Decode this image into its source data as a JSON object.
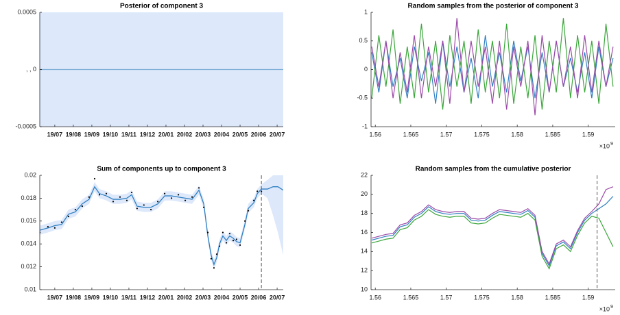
{
  "chart_data": [
    {
      "type": "line",
      "title": "Posterior of component 3",
      "xlim": [
        -0.81,
        12.33
      ],
      "xticks": [
        {
          "value": 0,
          "label": "19/07"
        },
        {
          "value": 1,
          "label": "19/08"
        },
        {
          "value": 2,
          "label": "19/09"
        },
        {
          "value": 3,
          "label": "19/10"
        },
        {
          "value": 4,
          "label": "19/11"
        },
        {
          "value": 5,
          "label": "19/12"
        },
        {
          "value": 6,
          "label": "20/01"
        },
        {
          "value": 7,
          "label": "20/02"
        },
        {
          "value": 8,
          "label": "20/03"
        },
        {
          "value": 9,
          "label": "20/04"
        },
        {
          "value": 10,
          "label": "20/05"
        },
        {
          "value": 11,
          "label": "20/06"
        },
        {
          "value": 12,
          "label": "20/07"
        }
      ],
      "ylim": [
        -0.0005,
        0.0005
      ],
      "yticks": [
        -0.0005,
        {
          "value": 0,
          "label": ", , 0"
        },
        0.0005
      ],
      "x": [
        -0.81,
        12.33
      ],
      "band": {
        "color": "#dde8fb",
        "lower": [
          -0.0005,
          -0.0005
        ],
        "upper": [
          0.0005,
          0.0005
        ]
      },
      "series": [
        {
          "color": "#7fb0d8",
          "values": [
            0,
            0
          ]
        }
      ]
    },
    {
      "type": "line",
      "title": "Random samples from the posterior of component 3",
      "xlim": [
        1.5594,
        1.5938
      ],
      "xticks": [
        1.56,
        1.565,
        1.57,
        1.575,
        1.58,
        1.585,
        1.59
      ],
      "x_multiplier": "×10",
      "x_exponent": "9",
      "ylim": [
        -1,
        1
      ],
      "yticks": [
        -1,
        -0.5,
        0,
        0.5,
        1
      ],
      "x": [
        1.5595,
        1.5605,
        1.5615,
        1.5625,
        1.5635,
        1.5645,
        1.5655,
        1.5665,
        1.5675,
        1.5685,
        1.5695,
        1.5705,
        1.5715,
        1.5725,
        1.5735,
        1.5745,
        1.5755,
        1.5765,
        1.5775,
        1.5785,
        1.5795,
        1.5805,
        1.5815,
        1.5825,
        1.5835,
        1.5845,
        1.5855,
        1.5865,
        1.5875,
        1.5885,
        1.5895,
        1.5905,
        1.5915,
        1.5925,
        1.5935
      ],
      "series": [
        {
          "color": "#2f7fc1",
          "values": [
            0.3,
            -0.4,
            0.5,
            -0.3,
            0.2,
            -0.5,
            0.4,
            -0.2,
            0.3,
            -0.6,
            0.5,
            -0.3,
            0.4,
            -0.4,
            0.2,
            -0.5,
            0.6,
            -0.3,
            0.3,
            -0.4,
            0.5,
            -0.2,
            0.4,
            -0.5,
            0.3,
            -0.4,
            0.5,
            -0.3,
            0.2,
            -0.4,
            0.3,
            -0.5,
            0.4,
            -0.3,
            0.2
          ]
        },
        {
          "color": "#3aa63a",
          "values": [
            -0.5,
            0.6,
            -0.3,
            0.7,
            -0.6,
            0.4,
            -0.5,
            0.8,
            -0.4,
            0.5,
            -0.7,
            0.6,
            -0.3,
            0.5,
            -0.6,
            0.7,
            -0.4,
            0.5,
            -0.5,
            0.8,
            -0.6,
            0.4,
            -0.5,
            0.6,
            -0.7,
            0.5,
            -0.4,
            0.9,
            -0.5,
            0.6,
            -0.4,
            0.5,
            -0.6,
            0.8,
            -0.3
          ]
        },
        {
          "color": "#9b4aa8",
          "values": [
            0.4,
            -0.3,
            0.5,
            -0.5,
            0.3,
            -0.4,
            0.6,
            -0.5,
            0.4,
            -0.3,
            0.5,
            -0.6,
            0.9,
            -0.4,
            0.5,
            -0.3,
            0.4,
            -0.6,
            0.5,
            -0.7,
            0.4,
            -0.3,
            0.5,
            -0.8,
            0.6,
            -0.4,
            0.5,
            -0.3,
            0.4,
            -0.5,
            0.6,
            -0.4,
            0.5,
            -0.3,
            0.4
          ]
        }
      ]
    },
    {
      "type": "line",
      "title": "Sum of components up to component 3",
      "xlim": [
        -0.81,
        12.33
      ],
      "xticks": [
        {
          "value": 0,
          "label": "19/07"
        },
        {
          "value": 1,
          "label": "19/08"
        },
        {
          "value": 2,
          "label": "19/09"
        },
        {
          "value": 3,
          "label": "19/10"
        },
        {
          "value": 4,
          "label": "19/11"
        },
        {
          "value": 5,
          "label": "19/12"
        },
        {
          "value": 6,
          "label": "20/01"
        },
        {
          "value": 7,
          "label": "20/02"
        },
        {
          "value": 8,
          "label": "20/03"
        },
        {
          "value": 9,
          "label": "20/04"
        },
        {
          "value": 10,
          "label": "20/05"
        },
        {
          "value": 11,
          "label": "20/06"
        },
        {
          "value": 12,
          "label": "20/07"
        }
      ],
      "ylim": [
        0.01,
        0.02
      ],
      "yticks": [
        0.01,
        0.012,
        0.014,
        0.016,
        0.018,
        0.02
      ],
      "vline": 11.15,
      "x": [
        -0.81,
        -0.37,
        0,
        0.37,
        0.74,
        1.11,
        1.48,
        1.85,
        2.15,
        2.41,
        2.78,
        3.15,
        3.52,
        3.89,
        4.15,
        4.44,
        4.81,
        5.19,
        5.56,
        5.93,
        6.3,
        6.67,
        7.04,
        7.41,
        7.78,
        8.04,
        8.26,
        8.44,
        8.59,
        8.74,
        8.89,
        9.07,
        9.26,
        9.44,
        9.63,
        9.81,
        10.0,
        10.26,
        10.44,
        10.74,
        10.93,
        11.15,
        11.48,
        11.78,
        12.04,
        12.33
      ],
      "band": {
        "color": "#dde8fb",
        "lower": [
          0.0148,
          0.015,
          0.0152,
          0.0153,
          0.0162,
          0.0164,
          0.0171,
          0.0175,
          0.0186,
          0.018,
          0.0178,
          0.0175,
          0.0175,
          0.0176,
          0.0179,
          0.0169,
          0.0168,
          0.0168,
          0.0171,
          0.0178,
          0.0178,
          0.0177,
          0.0176,
          0.0175,
          0.0183,
          0.0171,
          0.0143,
          0.0126,
          0.0118,
          0.0124,
          0.0136,
          0.0143,
          0.0139,
          0.0143,
          0.0141,
          0.0138,
          0.0137,
          0.0153,
          0.0167,
          0.0172,
          0.018,
          0.0184,
          0.018,
          0.0165,
          0.015,
          0.013
        ],
        "upper": [
          0.0156,
          0.0158,
          0.016,
          0.0161,
          0.017,
          0.0172,
          0.0179,
          0.0183,
          0.0194,
          0.0188,
          0.0186,
          0.0183,
          0.0183,
          0.0184,
          0.0187,
          0.0177,
          0.0176,
          0.0176,
          0.0179,
          0.0186,
          0.0186,
          0.0185,
          0.0184,
          0.0183,
          0.0191,
          0.0179,
          0.0151,
          0.0134,
          0.0126,
          0.0132,
          0.0144,
          0.0151,
          0.0147,
          0.0151,
          0.0149,
          0.0146,
          0.0145,
          0.0161,
          0.0175,
          0.018,
          0.0188,
          0.0192,
          0.0196,
          0.02,
          0.02,
          0.02
        ]
      },
      "series": [
        {
          "color": "#2f7fc1",
          "values": [
            0.0152,
            0.0154,
            0.0156,
            0.0157,
            0.0166,
            0.0168,
            0.0175,
            0.0179,
            0.019,
            0.0184,
            0.0182,
            0.0179,
            0.0179,
            0.018,
            0.0183,
            0.0173,
            0.0172,
            0.0172,
            0.0175,
            0.0182,
            0.0182,
            0.0181,
            0.018,
            0.0179,
            0.0187,
            0.0175,
            0.0147,
            0.013,
            0.0122,
            0.0128,
            0.014,
            0.0147,
            0.0143,
            0.0147,
            0.0145,
            0.0142,
            0.0141,
            0.0157,
            0.0171,
            0.0176,
            0.0184,
            0.0188,
            0.0188,
            0.019,
            0.019,
            0.0187
          ]
        }
      ],
      "points": {
        "color": "#000000",
        "x": [
          -0.81,
          -0.37,
          0,
          0.37,
          0.74,
          1.11,
          1.48,
          1.85,
          2.15,
          2.41,
          2.78,
          3.15,
          3.52,
          3.89,
          4.15,
          4.44,
          4.81,
          5.19,
          5.56,
          5.93,
          6.3,
          6.67,
          7.04,
          7.41,
          7.78,
          8.04,
          8.26,
          8.44,
          8.59,
          8.74,
          8.89,
          9.07,
          9.26,
          9.44,
          9.63,
          9.81,
          10.0,
          10.26,
          10.44,
          10.74,
          10.93,
          11.15
        ],
        "values": [
          0.015,
          0.0155,
          0.0154,
          0.0159,
          0.0164,
          0.017,
          0.0173,
          0.0181,
          0.0197,
          0.0183,
          0.0184,
          0.0177,
          0.0181,
          0.0178,
          0.0185,
          0.0171,
          0.0174,
          0.017,
          0.0177,
          0.0184,
          0.018,
          0.0183,
          0.0178,
          0.0181,
          0.0189,
          0.0172,
          0.015,
          0.0127,
          0.0119,
          0.0131,
          0.0138,
          0.015,
          0.0141,
          0.0149,
          0.0143,
          0.0144,
          0.0139,
          0.016,
          0.0169,
          0.0178,
          0.0186,
          0.0186
        ]
      }
    },
    {
      "type": "line",
      "title": "Random samples from the cumulative posterior",
      "xlim": [
        1.5594,
        1.5938
      ],
      "xticks": [
        1.56,
        1.565,
        1.57,
        1.575,
        1.58,
        1.585,
        1.59
      ],
      "x_multiplier": "×10",
      "x_exponent": "9",
      "ylim": [
        10,
        22
      ],
      "yticks": [
        10,
        12,
        14,
        16,
        18,
        20,
        22
      ],
      "vline": 1.59125,
      "x": [
        1.5595,
        1.5605,
        1.5615,
        1.5625,
        1.5635,
        1.5645,
        1.5655,
        1.5665,
        1.5675,
        1.5685,
        1.5695,
        1.5705,
        1.5715,
        1.5725,
        1.5735,
        1.5745,
        1.5755,
        1.5765,
        1.5775,
        1.5785,
        1.5795,
        1.5805,
        1.5815,
        1.5825,
        1.5835,
        1.5845,
        1.5855,
        1.5865,
        1.5875,
        1.5885,
        1.5895,
        1.5905,
        1.5915,
        1.5925,
        1.5935
      ],
      "series": [
        {
          "color": "#2f7fc1",
          "values": [
            15.2,
            15.4,
            15.6,
            15.7,
            16.6,
            16.8,
            17.6,
            18.0,
            18.7,
            18.2,
            18.0,
            17.9,
            18.0,
            18.0,
            17.3,
            17.2,
            17.3,
            17.8,
            18.2,
            18.1,
            18.0,
            17.9,
            18.3,
            17.6,
            13.8,
            12.5,
            14.6,
            15.0,
            14.3,
            16.0,
            17.3,
            18.0,
            18.5,
            19.0,
            19.8
          ]
        },
        {
          "color": "#3aa63a",
          "values": [
            14.9,
            15.1,
            15.3,
            15.4,
            16.3,
            16.5,
            17.3,
            17.7,
            18.4,
            17.9,
            17.7,
            17.6,
            17.7,
            17.7,
            17.0,
            16.9,
            17.0,
            17.5,
            17.9,
            17.8,
            17.7,
            17.6,
            18.0,
            17.3,
            13.5,
            12.2,
            14.3,
            14.7,
            14.0,
            15.7,
            17.0,
            17.7,
            17.5,
            16.0,
            14.5
          ]
        },
        {
          "color": "#9b4aa8",
          "values": [
            15.4,
            15.6,
            15.8,
            15.9,
            16.8,
            17.0,
            17.8,
            18.2,
            18.9,
            18.4,
            18.2,
            18.1,
            18.2,
            18.2,
            17.5,
            17.4,
            17.5,
            18.0,
            18.4,
            18.3,
            18.2,
            18.1,
            18.5,
            17.8,
            14.0,
            12.7,
            14.8,
            15.2,
            14.5,
            16.2,
            17.5,
            18.2,
            19.0,
            20.5,
            20.8
          ]
        }
      ]
    }
  ]
}
